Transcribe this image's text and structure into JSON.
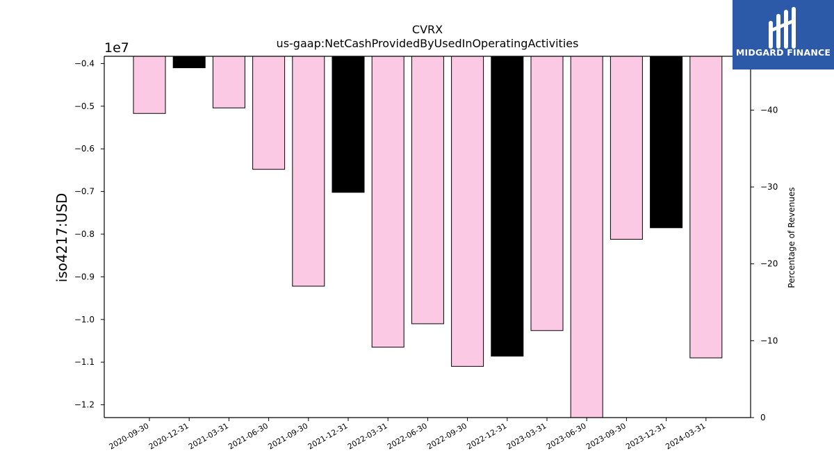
{
  "chart_data": {
    "type": "bar",
    "title": "CVRX",
    "subtitle": "us-gaap:NetCashProvidedByUsedInOperatingActivities",
    "ylabel": "iso4217:USD",
    "y2label": "Percentage of Revenues",
    "offset_label": "1e7",
    "categories": [
      "2020-09-30",
      "2020-12-31",
      "2021-03-31",
      "2021-06-30",
      "2021-09-30",
      "2021-12-31",
      "2022-03-31",
      "2022-06-30",
      "2022-09-30",
      "2022-12-31",
      "2023-03-31",
      "2023-06-30",
      "2023-09-30",
      "2023-12-31",
      "2024-03-31"
    ],
    "values": [
      -5170000,
      -4100000,
      -5040000,
      -6480000,
      -9220000,
      -7020000,
      -10650000,
      -10100000,
      -11100000,
      -10860000,
      -10260000,
      -12300000,
      -8120000,
      -7850000,
      -10900000
    ],
    "bar_colors": [
      "#fcc9e4",
      "#000000",
      "#fcc9e4",
      "#fcc9e4",
      "#fcc9e4",
      "#000000",
      "#fcc9e4",
      "#fcc9e4",
      "#fcc9e4",
      "#000000",
      "#fcc9e4",
      "#fcc9e4",
      "#fcc9e4",
      "#000000",
      "#fcc9e4"
    ],
    "ylim": [
      -12300000,
      -3830000
    ],
    "yticks": [
      -4000000,
      -5000000,
      -6000000,
      -7000000,
      -8000000,
      -9000000,
      -10000000,
      -11000000,
      -12000000
    ],
    "ytick_labels": [
      "−0.4",
      "−0.5",
      "−0.6",
      "−0.7",
      "−0.8",
      "−0.9",
      "−1.0",
      "−1.1",
      "−1.2"
    ],
    "y2lim": [
      0,
      -47
    ],
    "y2ticks": [
      -40,
      -30,
      -20,
      -10,
      0
    ],
    "y2tick_labels": [
      "−40",
      "−30",
      "−20",
      "−10",
      "0"
    ],
    "grid": false,
    "legend": "none"
  },
  "logo": {
    "text": "MIDGARD FINANCE",
    "bg_color": "#2d5aa8",
    "icon": "midgard-logo-icon"
  }
}
